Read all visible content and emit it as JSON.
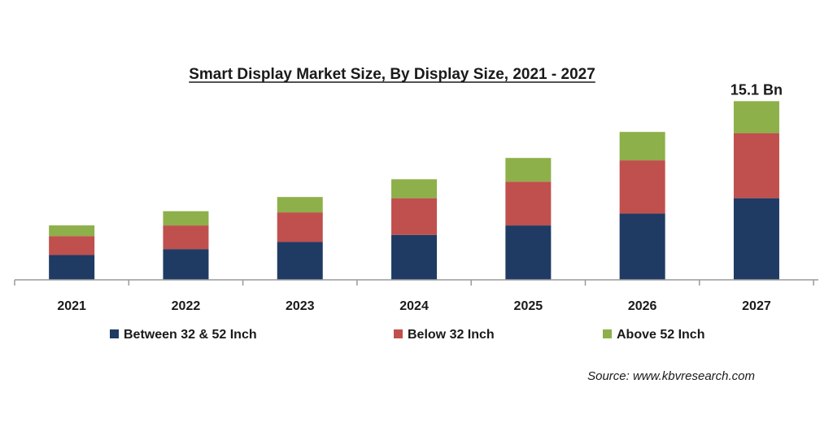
{
  "chart_data": {
    "type": "bar",
    "stacked": true,
    "title": "Smart Display Market Size, By Display Size, 2021 - 2027",
    "categories": [
      "2021",
      "2022",
      "2023",
      "2024",
      "2025",
      "2026",
      "2027"
    ],
    "series": [
      {
        "name": "Between 32 & 52 Inch",
        "color": "#1f3b63",
        "values": [
          2.1,
          2.6,
          3.2,
          3.8,
          4.6,
          5.6,
          6.9
        ]
      },
      {
        "name": "Below 32 Inch",
        "color": "#c0504d",
        "values": [
          1.6,
          2.0,
          2.5,
          3.1,
          3.7,
          4.5,
          5.5
        ]
      },
      {
        "name": "Above 52 Inch",
        "color": "#8db04a",
        "values": [
          0.9,
          1.2,
          1.3,
          1.6,
          2.0,
          2.4,
          2.7
        ]
      }
    ],
    "annotations": [
      {
        "category": "2027",
        "text": "15.1 Bn"
      }
    ],
    "ylim": [
      0,
      16.5
    ],
    "grid": false,
    "legend": "bottom",
    "source": "Source: www.kbvresearch.com"
  }
}
